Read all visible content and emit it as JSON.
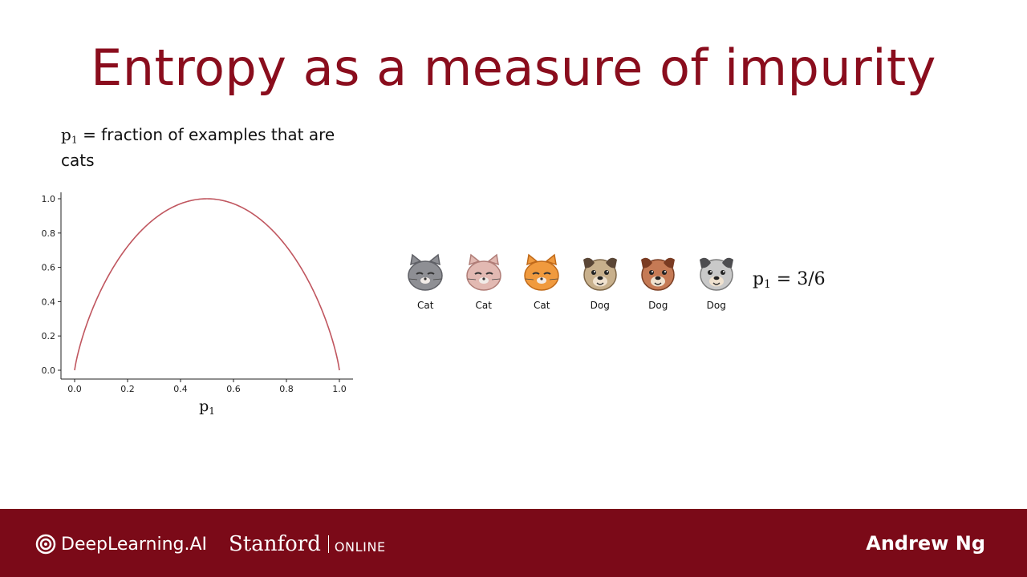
{
  "slide": {
    "title": "Entropy as a measure of impurity",
    "p1_symbol": "p",
    "p1_subscript": "1",
    "p1_definition_text": "= fraction of examples that are cats"
  },
  "chart_data": {
    "type": "line",
    "xlabel": "p1",
    "xlim": [
      0.0,
      1.0
    ],
    "ylim": [
      0.0,
      1.0
    ],
    "xticks": [
      "0.0",
      "0.2",
      "0.4",
      "0.6",
      "0.8",
      "1.0"
    ],
    "yticks": [
      "0.0",
      "0.2",
      "0.4",
      "0.6",
      "0.8",
      "1.0"
    ],
    "grid": false,
    "series": [
      {
        "function": "binary entropy H(p1) = -p1 log2(p1) - (1-p1) log2(1-p1)",
        "color": "#c0565f",
        "x": [
          0.0,
          0.05,
          0.1,
          0.2,
          0.3,
          0.4,
          0.5,
          0.6,
          0.7,
          0.8,
          0.9,
          0.95,
          1.0
        ],
        "y": [
          0.0,
          0.29,
          0.47,
          0.72,
          0.88,
          0.97,
          1.0,
          0.97,
          0.88,
          0.72,
          0.47,
          0.29,
          0.0
        ]
      }
    ]
  },
  "animals": [
    {
      "label": "Cat",
      "icon": "gray-cat-icon",
      "color": "#8e8f94"
    },
    {
      "label": "Cat",
      "icon": "pink-cat-icon",
      "color": "#e2b9b2"
    },
    {
      "label": "Cat",
      "icon": "orange-cat-icon",
      "color": "#f09a3e"
    },
    {
      "label": "Dog",
      "icon": "pug-dog-icon",
      "color": "#c8b08c"
    },
    {
      "label": "Dog",
      "icon": "brown-dog-icon",
      "color": "#c57a55"
    },
    {
      "label": "Dog",
      "icon": "gray-dog-icon",
      "color": "#c9c9c9"
    }
  ],
  "ratio": {
    "symbol": "p",
    "subscript": "1",
    "equals": "= 3/6"
  },
  "footer": {
    "deeplearning": "DeepLearning.AI",
    "stanford": "Stanford",
    "online": "ONLINE",
    "presenter": "Andrew Ng",
    "background_color": "#7b0a18"
  }
}
